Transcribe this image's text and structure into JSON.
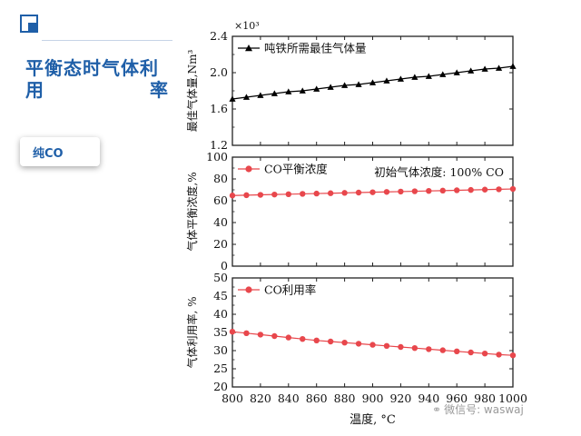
{
  "slide": {
    "title_line1": "平衡态时气体利",
    "title_line2_a": "用",
    "title_line2_b": "率",
    "tag_label": "纯CO",
    "watermark": "微信号: waswaj",
    "accent_color": "#1f5fa8"
  },
  "chart_data": [
    {
      "type": "line",
      "y_exponent_label": "×10³",
      "ylabel": "最佳气体量,Nm³",
      "ylim": [
        1.2,
        2.4
      ],
      "yticks": [
        "1.2",
        "1.6",
        "2.0",
        "2.4"
      ],
      "ytick_values": [
        1.2,
        1.6,
        2.0,
        2.4
      ],
      "series": [
        {
          "name": "吨铁所需最佳气体量",
          "marker": "triangle",
          "color": "#000000",
          "x": [
            800,
            810,
            820,
            830,
            840,
            850,
            860,
            870,
            880,
            890,
            900,
            910,
            920,
            930,
            940,
            950,
            960,
            970,
            980,
            990,
            1000
          ],
          "values": [
            1.71,
            1.73,
            1.75,
            1.77,
            1.79,
            1.8,
            1.82,
            1.84,
            1.86,
            1.87,
            1.89,
            1.91,
            1.93,
            1.95,
            1.96,
            1.98,
            2.0,
            2.02,
            2.04,
            2.05,
            2.07
          ]
        }
      ],
      "legend_position": "top-left"
    },
    {
      "type": "line",
      "ylabel": "气体平衡浓度,%",
      "ylim": [
        0,
        100
      ],
      "yticks": [
        "0",
        "20",
        "40",
        "60",
        "80",
        "100"
      ],
      "ytick_values": [
        0,
        20,
        40,
        60,
        80,
        100
      ],
      "annotation": "初始气体浓度: 100% CO",
      "series": [
        {
          "name": "CO平衡浓度",
          "marker": "circle",
          "color": "#e8474c",
          "x": [
            800,
            810,
            820,
            830,
            840,
            850,
            860,
            870,
            880,
            890,
            900,
            910,
            920,
            930,
            940,
            950,
            960,
            970,
            980,
            990,
            1000
          ],
          "values": [
            64.8,
            65.1,
            65.4,
            65.7,
            66.0,
            66.3,
            66.6,
            66.9,
            67.2,
            67.5,
            67.8,
            68.1,
            68.4,
            68.7,
            69.0,
            69.3,
            69.6,
            69.9,
            70.2,
            70.5,
            70.8
          ]
        }
      ],
      "legend_position": "top-left"
    },
    {
      "type": "line",
      "ylabel": "气体利用率, %",
      "xlabel": "温度, °C",
      "ylim": [
        20,
        50
      ],
      "yticks": [
        "20",
        "25",
        "30",
        "35",
        "40",
        "45",
        "50"
      ],
      "ytick_values": [
        20,
        25,
        30,
        35,
        40,
        45,
        50
      ],
      "xticks": [
        "800",
        "820",
        "840",
        "860",
        "880",
        "900",
        "920",
        "940",
        "960",
        "980",
        "1000"
      ],
      "xtick_values": [
        800,
        820,
        840,
        860,
        880,
        900,
        920,
        940,
        960,
        980,
        1000
      ],
      "xlim": [
        800,
        1000
      ],
      "series": [
        {
          "name": "CO利用率",
          "marker": "circle",
          "color": "#e8474c",
          "x": [
            800,
            810,
            820,
            830,
            840,
            850,
            860,
            870,
            880,
            890,
            900,
            910,
            920,
            930,
            940,
            950,
            960,
            970,
            980,
            990,
            1000
          ],
          "values": [
            35.2,
            34.8,
            34.4,
            34.0,
            33.6,
            33.2,
            32.8,
            32.5,
            32.2,
            31.9,
            31.6,
            31.3,
            31.0,
            30.7,
            30.4,
            30.1,
            29.8,
            29.5,
            29.2,
            28.9,
            28.7
          ]
        }
      ],
      "legend_position": "top-left"
    }
  ]
}
